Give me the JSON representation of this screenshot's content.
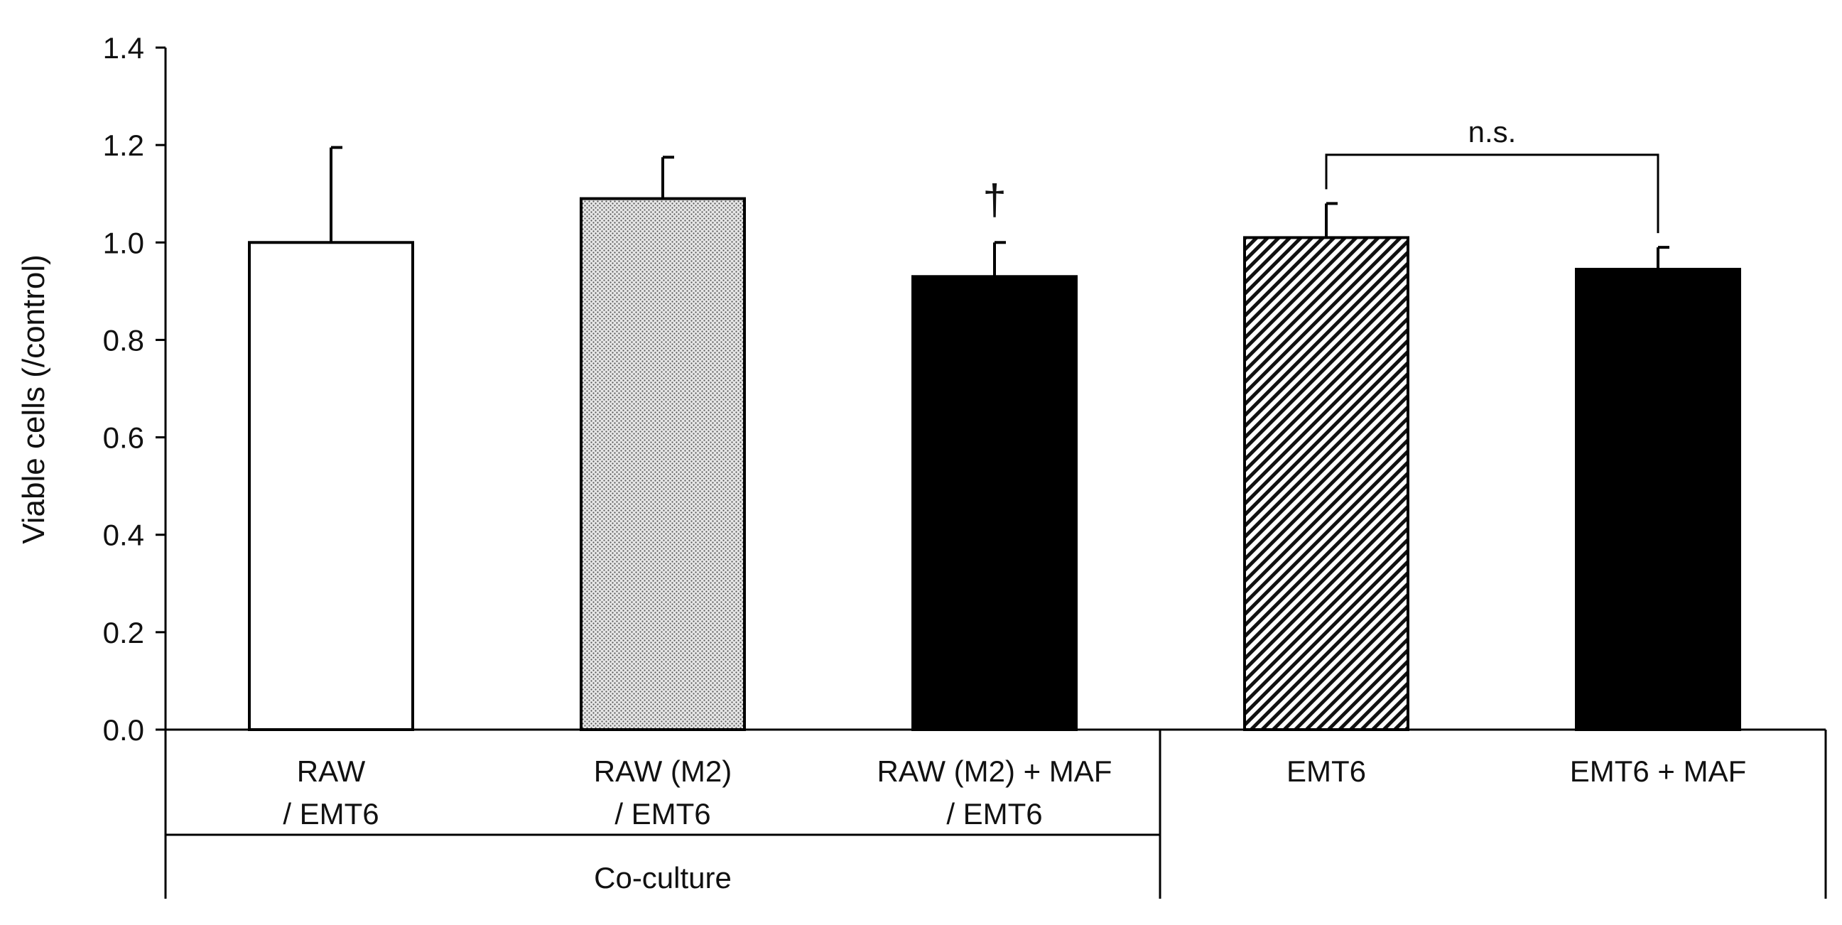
{
  "chart_data": {
    "type": "bar",
    "ylabel": "Viable cells (/control)",
    "ylim": [
      0,
      1.4
    ],
    "yticks": [
      "0.0",
      "0.2",
      "0.4",
      "0.6",
      "0.8",
      "1.0",
      "1.2",
      "1.4"
    ],
    "grid": false,
    "categories": [
      {
        "line1": "RAW",
        "line2": "/ EMT6"
      },
      {
        "line1": "RAW (M2)",
        "line2": "/ EMT6"
      },
      {
        "line1": "RAW (M2) + MAF",
        "line2": "/ EMT6"
      },
      {
        "line1": "EMT6",
        "line2": ""
      },
      {
        "line1": "EMT6 + MAF",
        "line2": ""
      }
    ],
    "values": [
      1.0,
      1.09,
      0.93,
      1.01,
      0.945
    ],
    "errors": [
      0.195,
      0.085,
      0.07,
      0.07,
      0.045
    ],
    "fills": [
      "white",
      "dots",
      "black",
      "hatch",
      "black"
    ],
    "group_label": "Co-culture",
    "annotations": {
      "dagger": "†",
      "dagger_bar_index": 2,
      "bracket_label": "n.s.",
      "bracket_bar_indices": [
        3,
        4
      ]
    },
    "colors": {
      "bar_outline": "#000000",
      "text": "#111111"
    }
  }
}
